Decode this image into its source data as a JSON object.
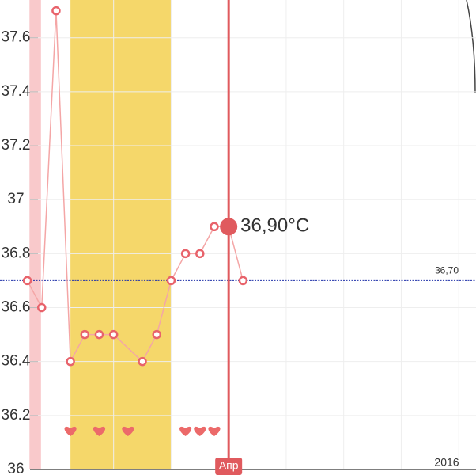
{
  "chart_data": {
    "type": "line",
    "x": [
      0,
      1,
      2,
      3,
      4,
      5,
      6,
      8,
      9,
      10,
      11,
      12,
      13,
      14,
      15
    ],
    "series": [
      {
        "color": "#e8636b",
        "values": [
          36.7,
          36.6,
          37.7,
          36.4,
          36.5,
          36.5,
          36.5,
          36.4,
          36.5,
          36.7,
          36.8,
          36.8,
          36.9,
          36.9,
          36.7
        ]
      }
    ],
    "xlim": [
      -1.9,
      31.2
    ],
    "xticks": [
      6,
      10,
      14,
      18,
      22,
      26,
      30
    ],
    "ylim": [
      36,
      37.74
    ],
    "yticks": [
      36,
      36.2,
      36.4,
      36.6,
      36.8,
      37,
      37.2,
      37.4,
      37.6
    ],
    "grid": true,
    "bands": [
      {
        "from": 0.15,
        "to": 0.95,
        "color": "#f9c9cb"
      },
      {
        "from": 3,
        "to": 10,
        "color": "#f5d76a"
      }
    ],
    "hearts_x": [
      3,
      5,
      7,
      11,
      12,
      13
    ],
    "reference": {
      "value": 36.7,
      "label": "36,70"
    },
    "selected": {
      "x": 14,
      "value": 36.9,
      "label": "36,90°C",
      "month": "Апр"
    },
    "year": "2016"
  }
}
